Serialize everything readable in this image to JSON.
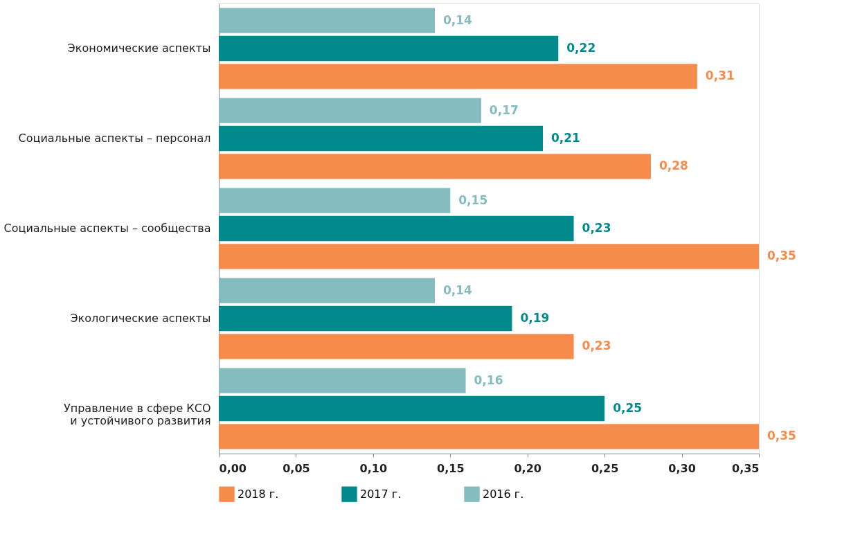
{
  "chart_data": {
    "type": "bar",
    "orientation": "horizontal",
    "categories": [
      "Экономические аспекты",
      "Социальные аспекты – персонал",
      "Социальные аспекты – сообщества",
      "Экологические аспекты",
      "Управление в сфере КСО\nи устойчивого развития"
    ],
    "series": [
      {
        "name": "2018 г.",
        "color": "#f58c4b",
        "values": [
          0.31,
          0.28,
          0.35,
          0.23,
          0.35
        ],
        "value_labels": [
          "0,31",
          "0,28",
          "0,35",
          "0,23",
          "0,35"
        ]
      },
      {
        "name": "2017 г.",
        "color": "#008a8c",
        "values": [
          0.22,
          0.21,
          0.23,
          0.19,
          0.25
        ],
        "value_labels": [
          "0,22",
          "0,21",
          "0,23",
          "0,19",
          "0,25"
        ]
      },
      {
        "name": "2016 г.",
        "color": "#84bcbf",
        "values": [
          0.14,
          0.17,
          0.15,
          0.14,
          0.16
        ],
        "value_labels": [
          "0,14",
          "0,17",
          "0,15",
          "0,14",
          "0,16"
        ]
      }
    ],
    "xlim": [
      0,
      0.35
    ],
    "xticks": [
      {
        "value": 0,
        "label": "0,00"
      },
      {
        "value": 0.05,
        "label": "0,05"
      },
      {
        "value": 0.1,
        "label": "0,10"
      },
      {
        "value": 0.15,
        "label": "0,15"
      },
      {
        "value": 0.2,
        "label": "0,20"
      },
      {
        "value": 0.25,
        "label": "0,25"
      },
      {
        "value": 0.3,
        "label": "0,30"
      },
      {
        "value": 0.35,
        "label": "0,35"
      }
    ],
    "legend": "bottom",
    "grid": false
  }
}
